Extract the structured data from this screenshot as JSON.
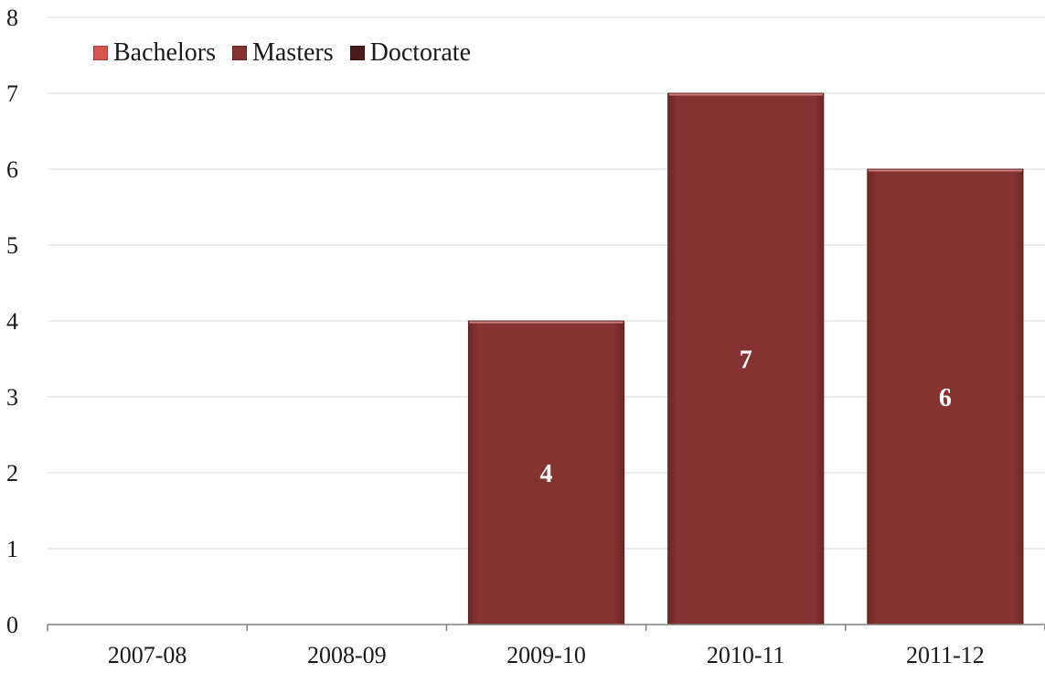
{
  "chart_data": {
    "type": "bar",
    "stacked": true,
    "categories": [
      "2007-08",
      "2008-09",
      "2009-10",
      "2010-11",
      "2011-12"
    ],
    "series": [
      {
        "name": "Bachelors",
        "values": [
          0,
          0,
          0,
          0,
          0
        ],
        "color": "#d9534f"
      },
      {
        "name": "Masters",
        "values": [
          0,
          0,
          4,
          7,
          6
        ],
        "color": "#843331"
      },
      {
        "name": "Doctorate",
        "values": [
          0,
          0,
          0,
          0,
          0
        ],
        "color": "#4a1a1a"
      }
    ],
    "data_labels": [
      "",
      "",
      "4",
      "7",
      "6"
    ],
    "ylim": [
      0,
      8
    ],
    "yticks": [
      "0",
      "1",
      "2",
      "3",
      "4",
      "5",
      "6",
      "7",
      "8"
    ],
    "grid": true,
    "legend_position": "top-left",
    "title": "",
    "xlabel": "",
    "ylabel": ""
  }
}
